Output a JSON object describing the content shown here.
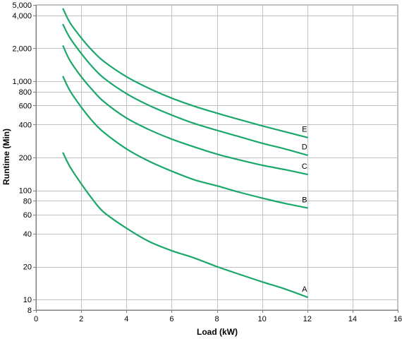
{
  "chart_data": {
    "type": "line",
    "title": "",
    "xlabel": "Load (kW)",
    "ylabel": "Runtime (Min)",
    "xlim": [
      0,
      16
    ],
    "ylim": [
      8,
      5000
    ],
    "yscale": "log",
    "grid": true,
    "x_ticks": [
      0,
      2,
      4,
      6,
      8,
      10,
      12,
      14,
      16
    ],
    "x_tick_labels": [
      "0",
      "2",
      "4",
      "6",
      "8",
      "10",
      "12",
      "14",
      "16"
    ],
    "y_ticks": [
      8,
      10,
      20,
      40,
      60,
      80,
      100,
      200,
      400,
      600,
      800,
      1000,
      2000,
      4000,
      5000
    ],
    "y_tick_labels": [
      "8",
      "10",
      "20",
      "40",
      "60",
      "80",
      "100",
      "200",
      "400",
      "600",
      "800",
      "1,000",
      "2,000",
      "4,000",
      "5,000"
    ],
    "line_color": "#1aa86a",
    "series": [
      {
        "name": "A",
        "x": [
          1.2,
          1.5,
          2,
          2.5,
          3,
          4,
          5,
          6,
          7,
          8,
          9,
          10,
          11,
          12
        ],
        "values": [
          220,
          165,
          115,
          83,
          63,
          45,
          34,
          28,
          24,
          20,
          17,
          14.5,
          12.5,
          10.5
        ]
      },
      {
        "name": "B",
        "x": [
          1.2,
          1.5,
          2,
          2.5,
          3,
          4,
          5,
          6,
          7,
          8,
          9,
          10,
          11,
          12
        ],
        "values": [
          1100,
          820,
          580,
          430,
          340,
          240,
          185,
          150,
          125,
          110,
          96,
          85,
          76,
          69
        ]
      },
      {
        "name": "C",
        "x": [
          1.2,
          1.5,
          2,
          2.5,
          3,
          4,
          5,
          6,
          7,
          8,
          9,
          10,
          11,
          12
        ],
        "values": [
          2100,
          1550,
          1100,
          830,
          650,
          460,
          360,
          295,
          250,
          215,
          190,
          170,
          155,
          140
        ]
      },
      {
        "name": "D",
        "x": [
          1.2,
          1.5,
          2,
          2.5,
          3,
          4,
          5,
          6,
          7,
          8,
          9,
          10,
          11,
          12
        ],
        "values": [
          3300,
          2500,
          1800,
          1350,
          1070,
          770,
          600,
          490,
          410,
          355,
          310,
          270,
          240,
          210
        ]
      },
      {
        "name": "E",
        "x": [
          1.2,
          1.5,
          2,
          2.5,
          3,
          4,
          5,
          6,
          7,
          8,
          9,
          10,
          11,
          12
        ],
        "values": [
          4600,
          3450,
          2500,
          1900,
          1520,
          1100,
          860,
          700,
          590,
          510,
          445,
          390,
          345,
          305
        ]
      }
    ]
  }
}
